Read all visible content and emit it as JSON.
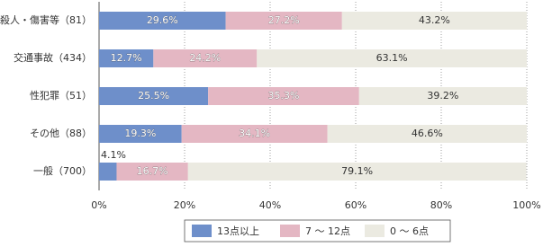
{
  "chart_data": {
    "type": "stacked-bar-horizontal",
    "categories": [
      "殺人・傷害等（81）",
      "交通事故（434）",
      "性犯罪（51）",
      "その他（88）",
      "一般（700）"
    ],
    "series": [
      {
        "name": "13点以上",
        "color": "#6e8fca",
        "values": [
          29.6,
          12.7,
          25.5,
          19.3,
          4.1
        ],
        "value_labels": [
          "29.6%",
          "12.7%",
          "25.5%",
          "19.3%",
          "4.1%"
        ]
      },
      {
        "name": "7 ～ 12点",
        "color": "#e4b7c3",
        "values": [
          27.2,
          24.2,
          35.3,
          34.1,
          16.7
        ],
        "value_labels": [
          "27.2%",
          "24.2%",
          "35.3%",
          "34.1%",
          "16.7%"
        ]
      },
      {
        "name": "0 ～ 6点",
        "color": "#ebeae1",
        "values": [
          43.2,
          63.1,
          39.2,
          46.6,
          79.1
        ],
        "value_labels": [
          "43.2%",
          "63.1%",
          "39.2%",
          "46.6%",
          "79.1%"
        ]
      }
    ],
    "xlim": [
      0,
      100
    ],
    "xticks": [
      {
        "value": 0,
        "label": "0%"
      },
      {
        "value": 20,
        "label": "20%"
      },
      {
        "value": 40,
        "label": "40%"
      },
      {
        "value": 60,
        "label": "60%"
      },
      {
        "value": 80,
        "label": "80%"
      },
      {
        "value": 100,
        "label": "100%"
      }
    ],
    "grid": true
  }
}
